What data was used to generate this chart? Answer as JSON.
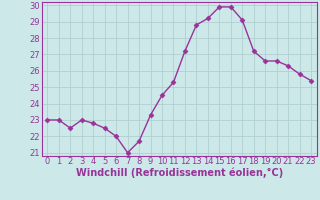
{
  "x": [
    0,
    1,
    2,
    3,
    4,
    5,
    6,
    7,
    8,
    9,
    10,
    11,
    12,
    13,
    14,
    15,
    16,
    17,
    18,
    19,
    20,
    21,
    22,
    23
  ],
  "y": [
    23.0,
    23.0,
    22.5,
    23.0,
    22.8,
    22.5,
    22.0,
    21.0,
    21.7,
    23.3,
    24.5,
    25.3,
    27.2,
    28.8,
    29.2,
    29.9,
    29.9,
    29.1,
    27.2,
    26.6,
    26.6,
    26.3,
    25.8,
    25.4
  ],
  "line_color": "#993399",
  "marker": "D",
  "marker_size": 2.5,
  "linewidth": 1.0,
  "xlabel": "Windchill (Refroidissement éolien,°C)",
  "xlabel_fontsize": 7.0,
  "xlabel_color": "#993399",
  "background_color": "#cce8e8",
  "grid_color": "#b0d0d0",
  "tick_label_color": "#993399",
  "ylim_min": 21,
  "ylim_max": 30,
  "yticks": [
    21,
    22,
    23,
    24,
    25,
    26,
    27,
    28,
    29,
    30
  ],
  "xlim_min": -0.5,
  "xlim_max": 23.5,
  "xticks": [
    0,
    1,
    2,
    3,
    4,
    5,
    6,
    7,
    8,
    9,
    10,
    11,
    12,
    13,
    14,
    15,
    16,
    17,
    18,
    19,
    20,
    21,
    22,
    23
  ],
  "tick_fontsize": 6.0,
  "spine_color": "#993399"
}
